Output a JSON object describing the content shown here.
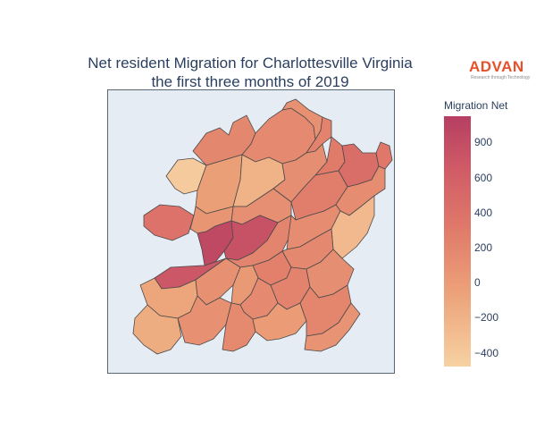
{
  "title": {
    "line1": "Net resident Migration for Charlottesville Virginia",
    "line2": "the first three months of 2019"
  },
  "logo": {
    "main": "ADVAN",
    "sub": "Research through Technology"
  },
  "legend": {
    "title": "Migration Net",
    "ticks": [
      "900",
      "600",
      "400",
      "200",
      "0",
      "−200",
      "−400"
    ],
    "range": [
      -480,
      950
    ]
  },
  "colors": {
    "scale": [
      "#f6d2a3",
      "#eca178",
      "#e07a6a",
      "#cf5a66",
      "#b63e62"
    ],
    "map_background": "#e6ecf4",
    "border": "#4a4a4a"
  },
  "map_data": {
    "type": "choropleth",
    "regions": [
      {
        "id": "r01",
        "value": 120
      },
      {
        "id": "r02",
        "value": 90
      },
      {
        "id": "r03",
        "value": 30
      },
      {
        "id": "r04",
        "value": 150
      },
      {
        "id": "r05",
        "value": -430
      },
      {
        "id": "r06",
        "value": -100
      },
      {
        "id": "r07",
        "value": -250
      },
      {
        "id": "r08",
        "value": 50
      },
      {
        "id": "r09",
        "value": 230
      },
      {
        "id": "r10",
        "value": 380
      },
      {
        "id": "r11",
        "value": 260
      },
      {
        "id": "r12",
        "value": 40
      },
      {
        "id": "r13",
        "value": 200
      },
      {
        "id": "r14",
        "value": 60
      },
      {
        "id": "r15",
        "value": 320
      },
      {
        "id": "r16",
        "value": -10
      },
      {
        "id": "r17",
        "value": 820
      },
      {
        "id": "r18",
        "value": 700
      },
      {
        "id": "r19",
        "value": 630
      },
      {
        "id": "r20",
        "value": 140
      },
      {
        "id": "r21",
        "value": 70
      },
      {
        "id": "r22",
        "value": -300
      },
      {
        "id": "r23",
        "value": 110
      },
      {
        "id": "r24",
        "value": 180
      },
      {
        "id": "r25",
        "value": -150
      },
      {
        "id": "r26",
        "value": 20
      },
      {
        "id": "r27",
        "value": -50
      },
      {
        "id": "r28",
        "value": 90
      },
      {
        "id": "r29",
        "value": 160
      },
      {
        "id": "r30",
        "value": 50
      },
      {
        "id": "r31",
        "value": -200
      },
      {
        "id": "r32",
        "value": 30
      },
      {
        "id": "r33",
        "value": 100
      },
      {
        "id": "r34",
        "value": -80
      },
      {
        "id": "r35",
        "value": 130
      },
      {
        "id": "r36",
        "value": 10
      }
    ]
  }
}
